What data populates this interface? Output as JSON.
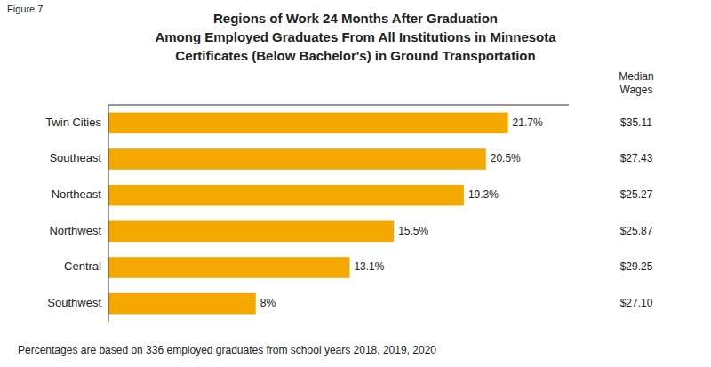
{
  "chart_data": {
    "type": "bar",
    "orientation": "horizontal",
    "title": "Regions of Work 24 Months After Graduation\nAmong Employed Graduates From All Institutions in Minnesota\nCertificates (Below Bachelor's) in Ground Transportation",
    "annotations": [
      "Figure 7",
      "Median\nWages",
      "Percentages are based on 336 employed graduates from school years 2018, 2019, 2020"
    ],
    "categories": [
      "Twin Cities",
      "Southeast",
      "Northeast",
      "Northwest",
      "Central",
      "Southwest"
    ],
    "values": [
      21.7,
      20.5,
      19.3,
      15.5,
      13.1,
      8.0
    ],
    "value_labels": [
      "21.7%",
      "20.5%",
      "19.3%",
      "15.5%",
      "13.1%",
      "8%"
    ],
    "median_wages": [
      "$35.11",
      "$27.43",
      "$25.27",
      "$25.87",
      "$29.25",
      "$27.10"
    ],
    "color": "#F5A800",
    "xlim": [
      0,
      25
    ],
    "data_labels": true,
    "tick_labels": "y",
    "grid": false
  }
}
